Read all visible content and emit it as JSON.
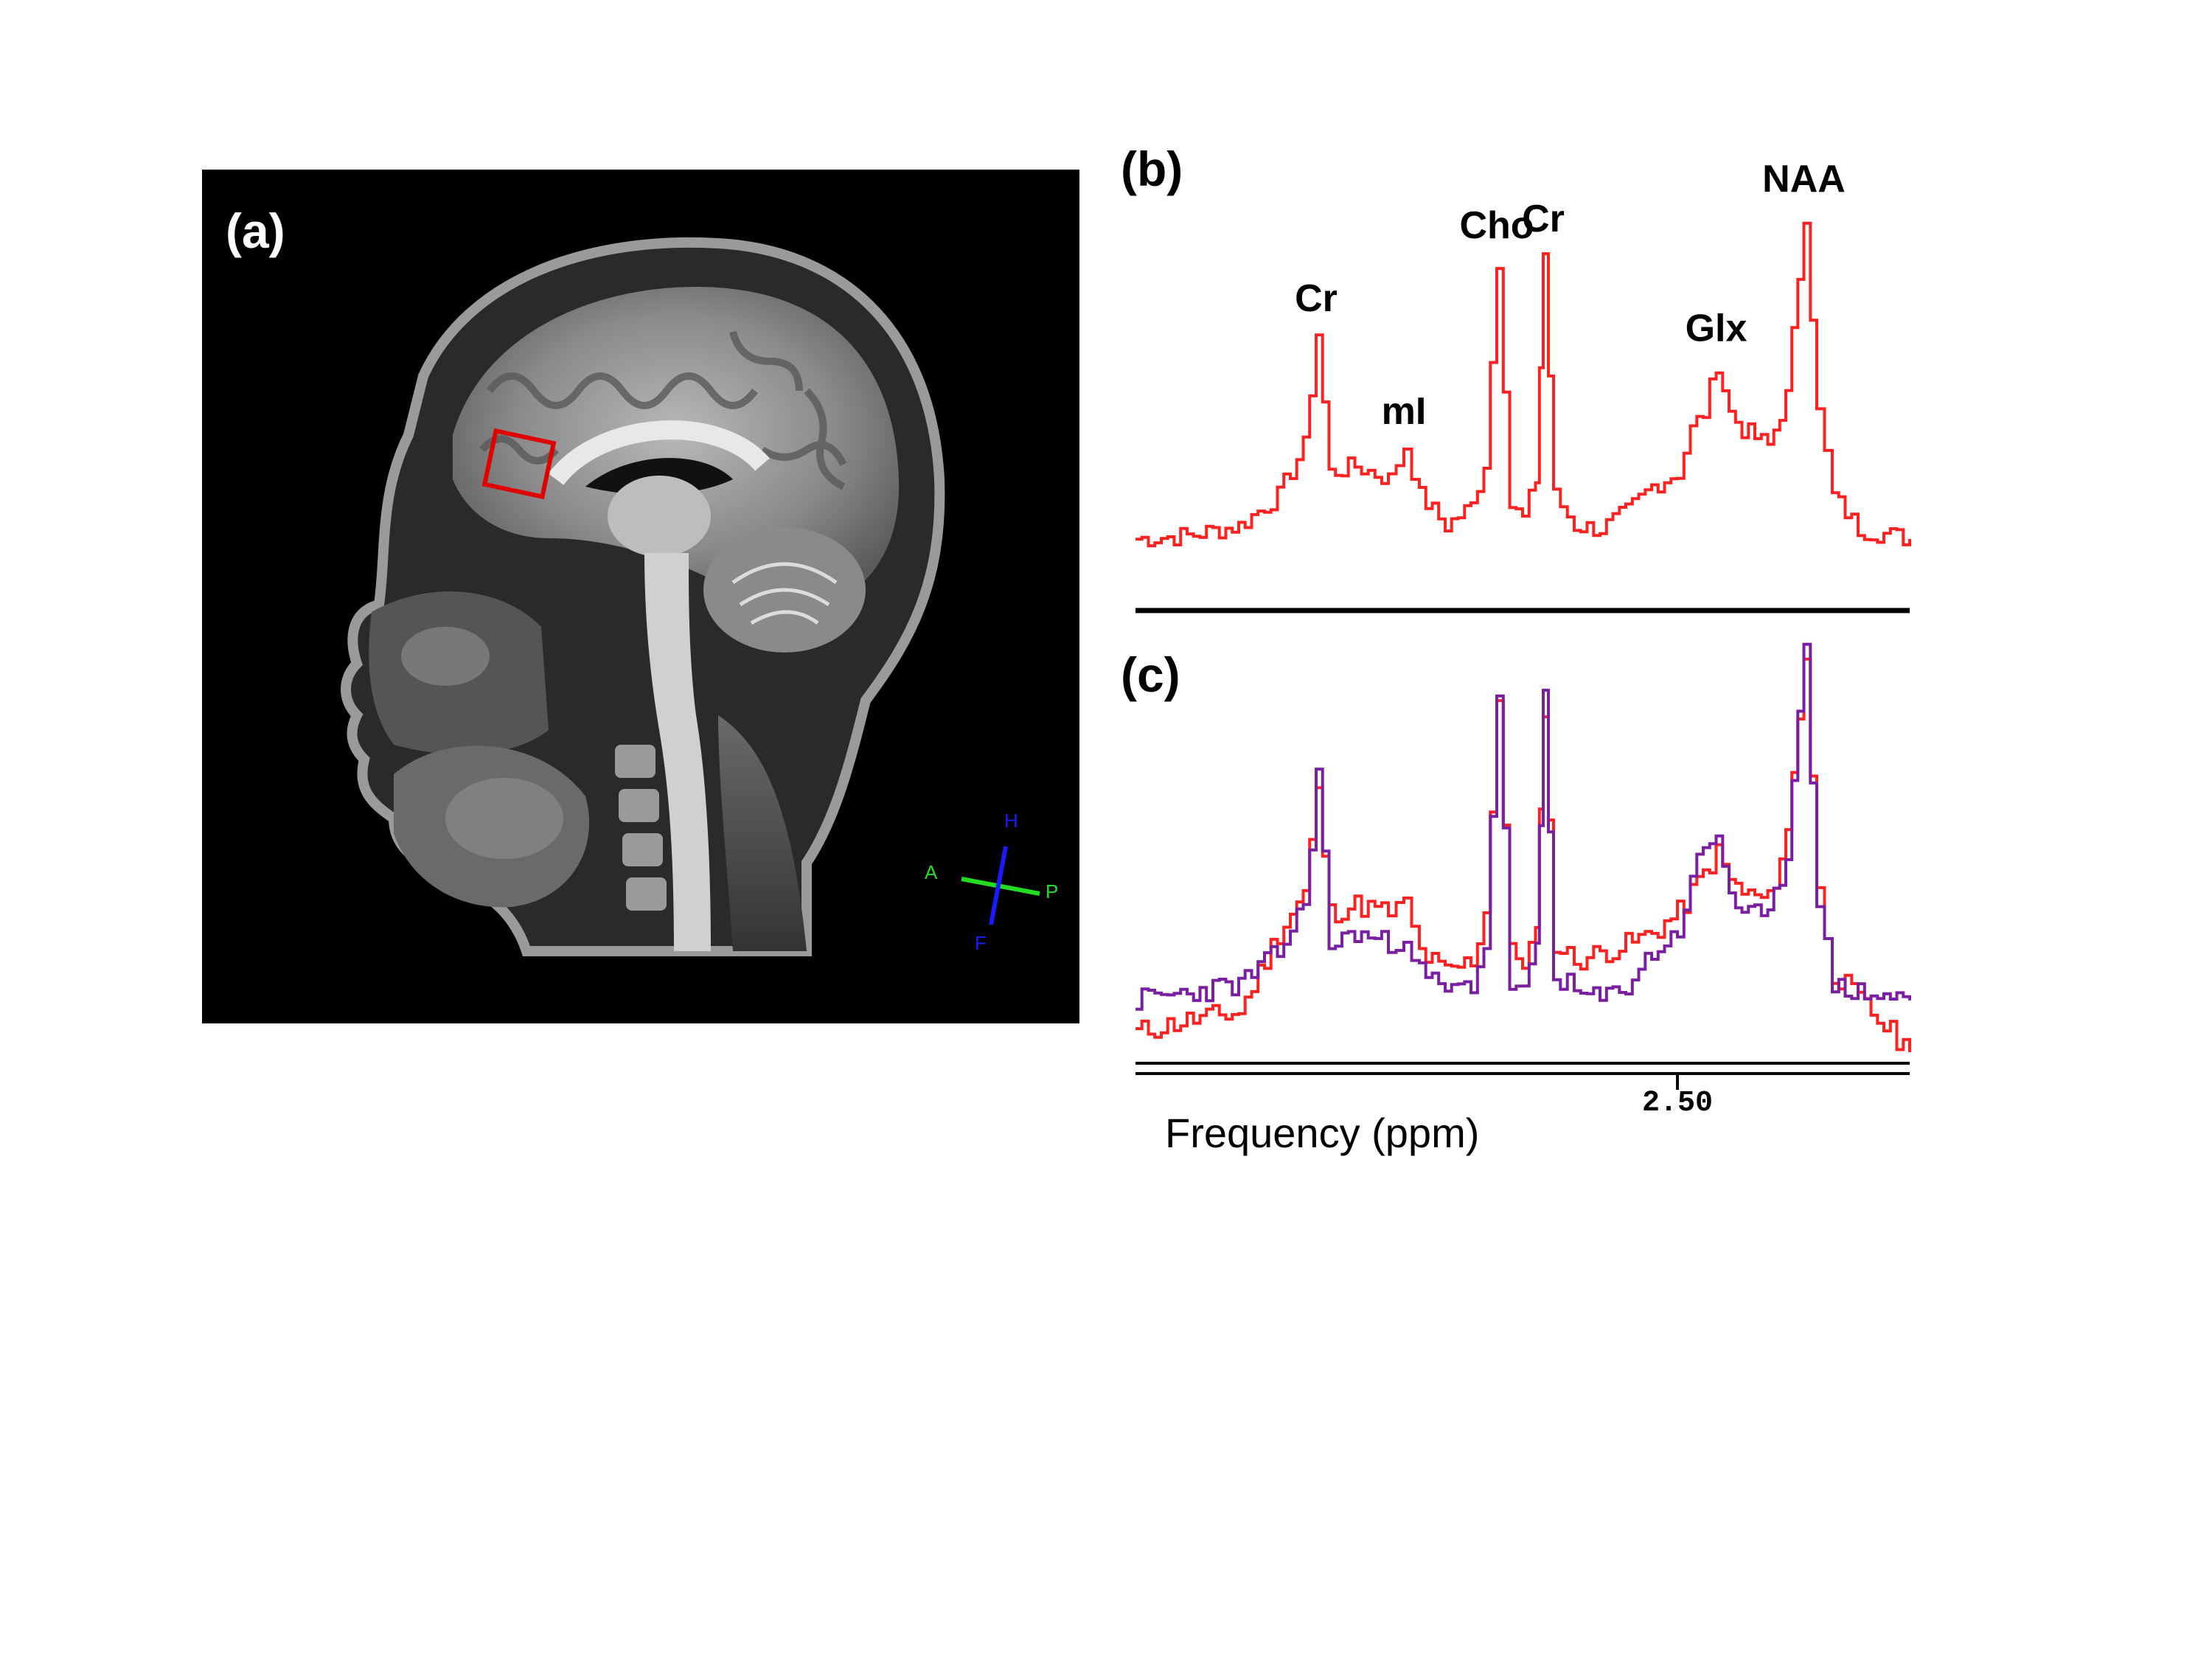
{
  "figure": {
    "panel_a": {
      "label": "(a)",
      "orientation": {
        "A": "A",
        "P": "P",
        "H": "H",
        "F": "F"
      },
      "voxel_color": "#e00000"
    },
    "panel_b": {
      "label": "(b)",
      "color": "#ff2020"
    },
    "panel_c": {
      "label": "(c)",
      "colors": {
        "red": "#ff2020",
        "purple": "#7b1fa2"
      }
    },
    "axis": {
      "xlabel": "Frequency (ppm)",
      "tick_label": "2.50"
    },
    "peaks": [
      {
        "label": "Cr",
        "ppm": 3.9
      },
      {
        "label": "mI",
        "ppm": 3.56
      },
      {
        "label": "Cho",
        "ppm": 3.2
      },
      {
        "label": "Cr",
        "ppm": 3.02
      },
      {
        "label": "Glx",
        "ppm": 2.35
      },
      {
        "label": "NAA",
        "ppm": 2.01
      }
    ]
  },
  "chart_data": [
    {
      "type": "line",
      "panel": "(b)",
      "x": [
        4.6,
        4.4,
        4.2,
        4.05,
        3.95,
        3.9,
        3.85,
        3.75,
        3.62,
        3.56,
        3.5,
        3.4,
        3.3,
        3.25,
        3.2,
        3.15,
        3.1,
        3.05,
        3.02,
        2.98,
        2.9,
        2.8,
        2.7,
        2.6,
        2.5,
        2.45,
        2.4,
        2.35,
        2.3,
        2.25,
        2.15,
        2.08,
        2.01,
        1.96,
        1.9,
        1.8,
        1.6
      ],
      "series": [
        {
          "values": [
            0.02,
            0.03,
            0.06,
            0.15,
            0.3,
            0.64,
            0.22,
            0.24,
            0.2,
            0.3,
            0.15,
            0.06,
            0.12,
            0.25,
            0.86,
            0.12,
            0.08,
            0.2,
            0.88,
            0.15,
            0.06,
            0.05,
            0.1,
            0.18,
            0.22,
            0.35,
            0.4,
            0.55,
            0.4,
            0.35,
            0.3,
            0.45,
            1.0,
            0.4,
            0.15,
            0.05,
            0.02
          ]
        }
      ]
    },
    {
      "type": "line",
      "panel": "(c)",
      "x": [
        4.6,
        4.4,
        4.2,
        4.05,
        3.95,
        3.9,
        3.85,
        3.75,
        3.62,
        3.56,
        3.5,
        3.4,
        3.3,
        3.25,
        3.2,
        3.15,
        3.1,
        3.05,
        3.02,
        2.98,
        2.9,
        2.8,
        2.7,
        2.6,
        2.5,
        2.45,
        2.4,
        2.35,
        2.3,
        2.25,
        2.15,
        2.08,
        2.01,
        1.96,
        1.9,
        1.8,
        1.6
      ],
      "series": [
        {
          "values": [
            0.0,
            0.03,
            0.05,
            0.25,
            0.35,
            0.6,
            0.3,
            0.32,
            0.3,
            0.32,
            0.2,
            0.15,
            0.18,
            0.3,
            0.84,
            0.2,
            0.18,
            0.25,
            0.82,
            0.22,
            0.18,
            0.2,
            0.22,
            0.25,
            0.3,
            0.35,
            0.4,
            0.45,
            0.38,
            0.35,
            0.33,
            0.5,
            0.95,
            0.35,
            0.15,
            0.08,
            -0.05
          ]
        },
        {
          "values": [
            0.08,
            0.1,
            0.12,
            0.2,
            0.32,
            0.65,
            0.22,
            0.25,
            0.22,
            0.25,
            0.15,
            0.1,
            0.12,
            0.22,
            0.86,
            0.12,
            0.1,
            0.2,
            0.85,
            0.15,
            0.1,
            0.08,
            0.12,
            0.2,
            0.25,
            0.4,
            0.45,
            0.5,
            0.35,
            0.3,
            0.28,
            0.45,
            1.0,
            0.3,
            0.12,
            0.1,
            0.08
          ]
        }
      ]
    }
  ]
}
